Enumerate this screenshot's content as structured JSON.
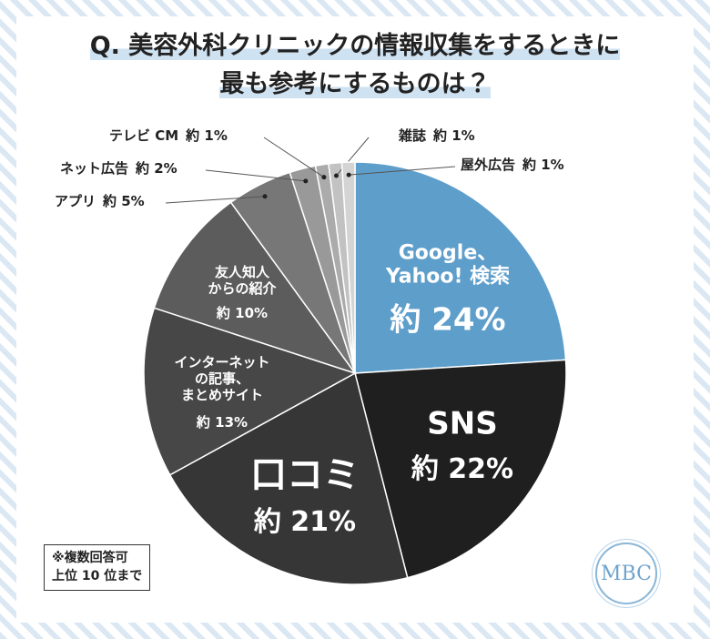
{
  "chart_data": {
    "type": "pie",
    "title": "Q. 美容外科クリニックの情報収集をするときに\n最も参考にするものは？",
    "categories": [
      "Google、\nYahoo! 検索",
      "SNS",
      "口コミ",
      "インターネット\nの記事、\nまとめサイト",
      "友人知人\nからの紹介",
      "アプリ",
      "ネット広告",
      "テレビ CM",
      "雑誌",
      "屋外広告"
    ],
    "values": [
      24,
      22,
      21,
      13,
      10,
      5,
      2,
      1,
      1,
      1
    ],
    "value_labels": [
      "約 24%",
      "約 22%",
      "約 21%",
      "約 13%",
      "約 10%",
      "約 5%",
      "約 2%",
      "約 1%",
      "約 1%",
      "約 1%"
    ],
    "colors": [
      "#5e9ecb",
      "#1f1f1f",
      "#363636",
      "#474747",
      "#5c5c5c",
      "#777777",
      "#999999",
      "#ababab",
      "#c2c2c2",
      "#d4d4d4"
    ],
    "note": "※複数回答可\n上位 10 位まで",
    "logo": "MBC"
  }
}
